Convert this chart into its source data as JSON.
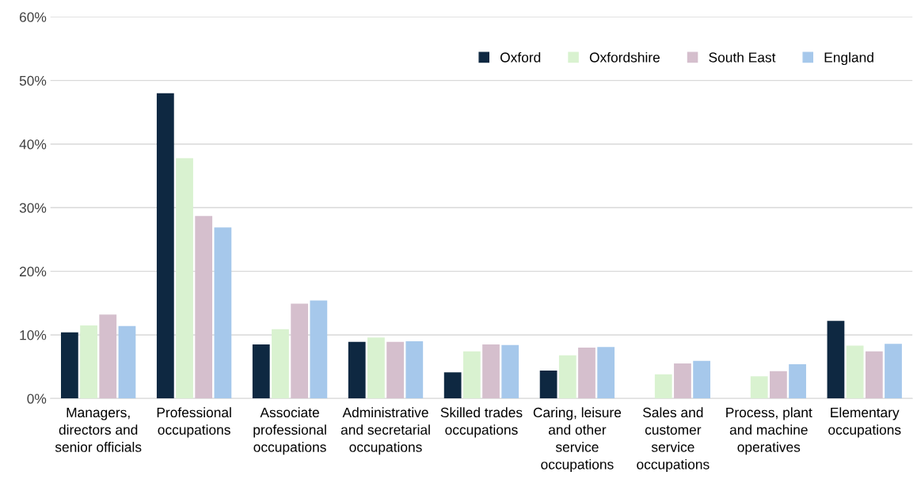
{
  "chart_data": {
    "type": "bar",
    "categories": [
      "Managers,\ndirectors and\nsenior officials",
      "Professional\noccupations",
      "Associate\nprofessional\noccupations",
      "Administrative\nand secretarial\noccupations",
      "Skilled trades\noccupations",
      "Caring, leisure\nand other\nservice\noccupations",
      "Sales and\ncustomer\nservice\noccupations",
      "Process, plant\nand machine\noperatives",
      "Elementary\noccupations"
    ],
    "series": [
      {
        "name": "Oxford",
        "color": "#0e2841",
        "values": [
          10.4,
          48.0,
          8.5,
          8.9,
          4.1,
          4.4,
          null,
          null,
          12.2
        ]
      },
      {
        "name": "Oxfordshire",
        "color": "#d9f2d0",
        "values": [
          11.5,
          37.8,
          10.9,
          9.6,
          7.4,
          6.8,
          3.8,
          3.5,
          8.3
        ]
      },
      {
        "name": "South East",
        "color": "#d5bfcd",
        "values": [
          13.2,
          28.7,
          14.9,
          8.9,
          8.5,
          8.0,
          5.5,
          4.3,
          7.4
        ]
      },
      {
        "name": "England",
        "color": "#a6c8eb",
        "values": [
          11.4,
          26.9,
          15.4,
          9.0,
          8.4,
          8.1,
          5.9,
          5.4,
          8.6
        ]
      }
    ],
    "ylim": [
      0,
      60
    ],
    "yticks": [
      {
        "value": 0,
        "label": "0%"
      },
      {
        "value": 10,
        "label": "10%"
      },
      {
        "value": 20,
        "label": "20%"
      },
      {
        "value": 30,
        "label": "30%"
      },
      {
        "value": 40,
        "label": "40%"
      },
      {
        "value": 50,
        "label": "50%"
      },
      {
        "value": 60,
        "label": "60%"
      }
    ],
    "grid": "y",
    "legend": "top right"
  }
}
